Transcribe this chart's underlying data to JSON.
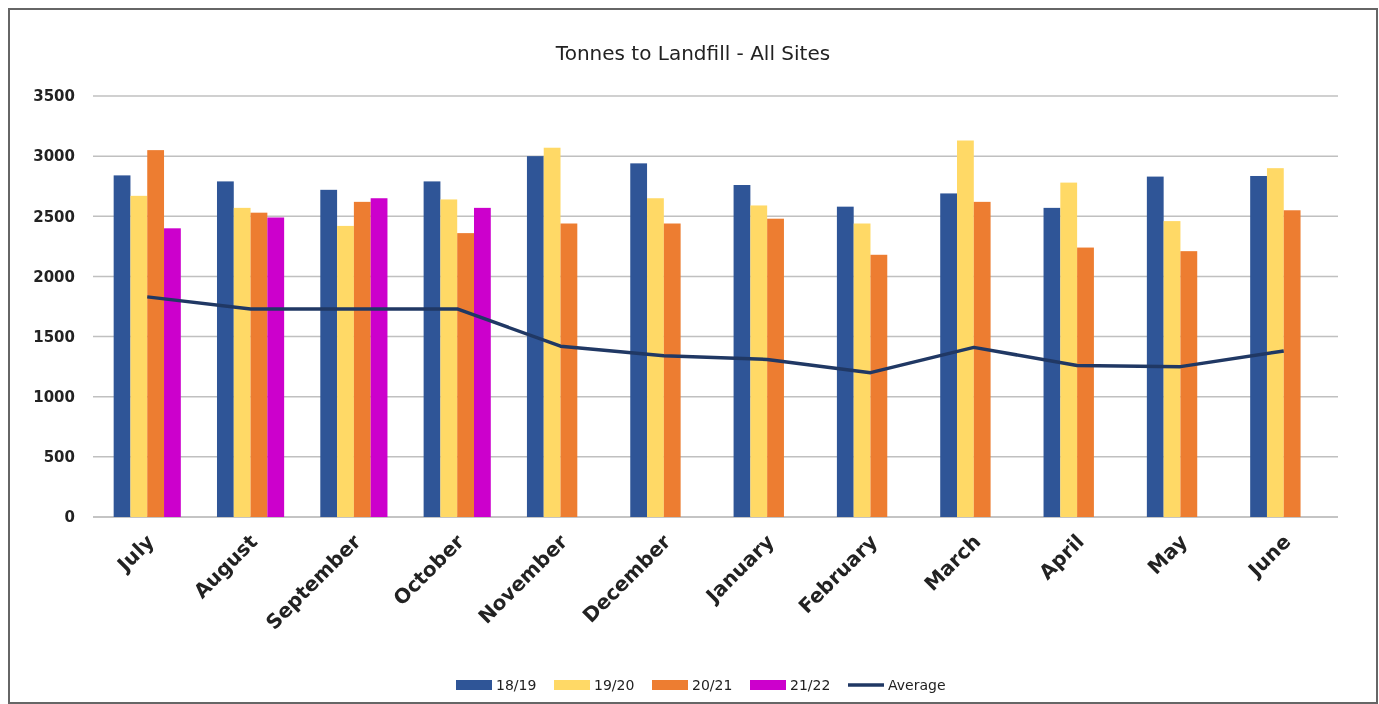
{
  "chart_data": {
    "type": "bar",
    "title": "Tonnes to Landfill - All Sites",
    "categories": [
      "July",
      "August",
      "September",
      "October",
      "November",
      "December",
      "January",
      "February",
      "March",
      "April",
      "May",
      "June"
    ],
    "series": [
      {
        "name": "18/19",
        "color": "#2f5597",
        "values": [
          2840,
          2790,
          2720,
          2790,
          3000,
          2940,
          2760,
          2580,
          2690,
          2570,
          2830,
          2835
        ]
      },
      {
        "name": "19/20",
        "color": "#ffd966",
        "values": [
          2670,
          2570,
          2420,
          2640,
          3070,
          2650,
          2590,
          2440,
          3130,
          2780,
          2460,
          2900
        ]
      },
      {
        "name": "20/21",
        "color": "#ed7d31",
        "values": [
          3050,
          2530,
          2620,
          2360,
          2440,
          2440,
          2480,
          2180,
          2620,
          2240,
          2210,
          2550
        ]
      },
      {
        "name": "21/22",
        "color": "#cc00cc",
        "values": [
          2400,
          2490,
          2650,
          2570,
          null,
          null,
          null,
          null,
          null,
          null,
          null,
          null
        ]
      },
      {
        "name": "Average",
        "type": "line",
        "color": "#203864",
        "values": [
          1830,
          1730,
          1730,
          1730,
          1420,
          1340,
          1310,
          1200,
          1410,
          1260,
          1250,
          1380
        ]
      }
    ],
    "ylim": [
      0,
      3500
    ],
    "yticks": [
      0,
      500,
      1000,
      1500,
      2000,
      2500,
      3000,
      3500
    ],
    "grid": "y",
    "legend": "bottom",
    "marker": "none"
  }
}
